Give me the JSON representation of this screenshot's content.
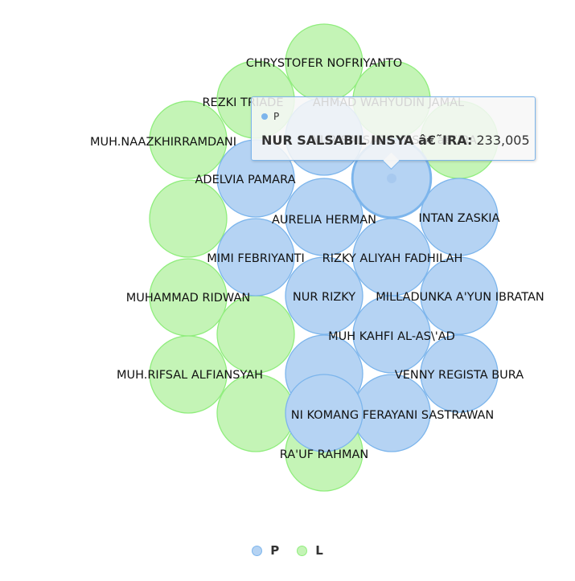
{
  "colors": {
    "P": "#b5d3f3",
    "P_stroke": "#7cb5ec",
    "L": "#c4f4b6",
    "L_stroke": "#90ed7d"
  },
  "chart_data": {
    "type": "packed-bubble",
    "series": [
      {
        "name": "P",
        "points": [
          "ADELVIA PAMARA",
          "AURELIA HERMAN",
          "INTAN ZASKIA",
          "MIMI FEBRIYANTI",
          "RIZKY ALIYAH FADHILAH",
          "NUR RIZKY",
          "MILLADUNKA A'YUN IBRATAN",
          "MUH KAHFI AL-AS\\'AD",
          "VENNY REGISTA BURA",
          "NI KOMANG FERAYANI SASTRAWAN",
          "AHMAD WAHYUDIN JAMAL",
          "NUR SALSABIL INSYA â€˜IRA",
          "",
          ""
        ]
      },
      {
        "name": "L",
        "points": [
          "CHRYSTOFER NOFRIYANTO",
          "REZKI TRIADE",
          "MUH.NAAZKHIRRAMDANI",
          "MUHAMMAD RIDWAN",
          "MUH.RIFSAL ALFIANSYAH",
          "RA'UF RAHMAN",
          "",
          "",
          "",
          "",
          ""
        ]
      }
    ],
    "tooltip": {
      "series": "P",
      "point": "NUR SALSABIL INSYA â€˜IRA",
      "value": "233,005"
    },
    "legend": [
      "P",
      "L"
    ],
    "legend_position": "bottom-center"
  }
}
